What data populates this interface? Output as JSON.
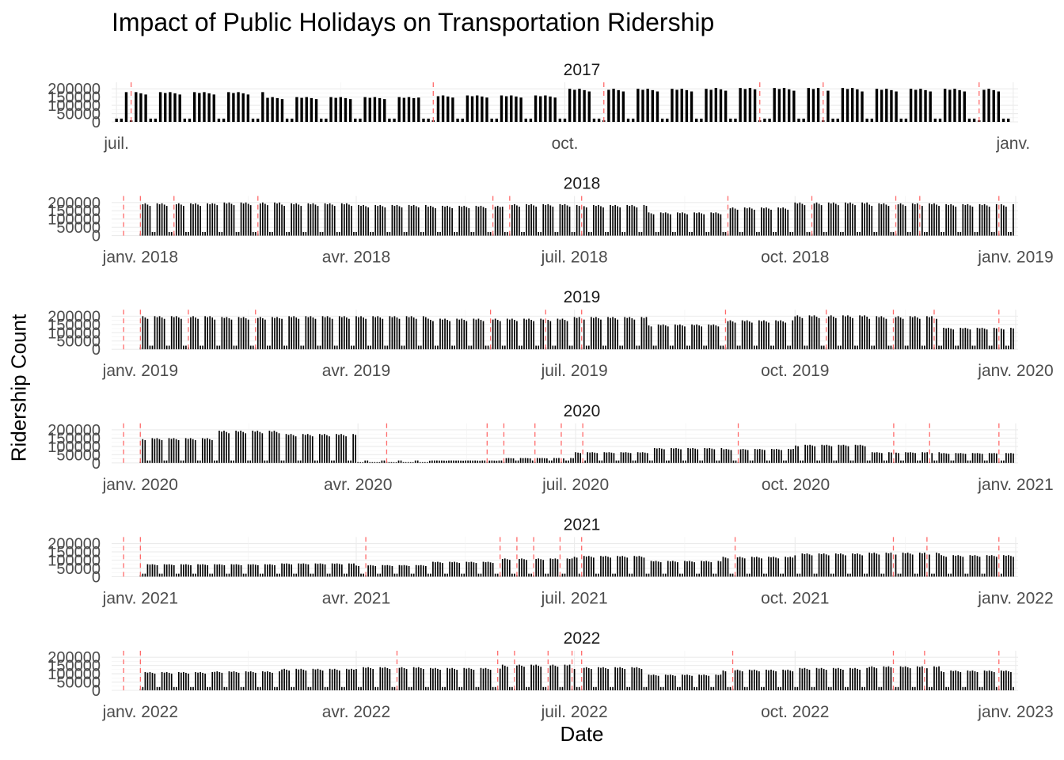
{
  "chart_data": {
    "type": "bar",
    "title": "Impact of Public Holidays on Transportation Ridership",
    "xlabel": "Date",
    "ylabel": "Ridership Count",
    "grid": true,
    "legend": "none",
    "bar_color": "#000000",
    "holiday_line_color": "#ff6b6b",
    "panels": [
      {
        "year": "2017",
        "xlim": [
          "2017-06-30",
          "2018-01-02"
        ],
        "ylim": [
          0,
          220000
        ],
        "y_ticks": [
          0,
          50000,
          100000,
          150000,
          200000
        ],
        "y_tick_labels": [
          "0",
          "50000",
          "100000",
          "150000",
          "200000"
        ],
        "x_ticks": [
          "2017-07-01",
          "2017-10-01",
          "2018-01-01"
        ],
        "x_tick_labels": [
          "juil.",
          "oct.",
          "janv."
        ],
        "holidays": [
          "2017-07-04",
          "2017-09-04",
          "2017-10-09",
          "2017-11-10",
          "2017-11-23",
          "2017-12-25"
        ],
        "daily_ridership": {
          "start": "2017-07-01",
          "end": "2017-12-31",
          "weekday_level_by_month": [
            {
              "month": "2017-07",
              "value": 180000
            },
            {
              "month": "2017-08",
              "value": 150000
            },
            {
              "month": "2017-09",
              "value": 160000
            },
            {
              "month": "2017-10",
              "value": 200000
            },
            {
              "month": "2017-11",
              "value": 205000
            },
            {
              "month": "2017-12",
              "value": 200000
            }
          ],
          "weekend_level": 20000,
          "holiday_level": 10000
        }
      },
      {
        "year": "2018",
        "xlim": [
          "2017-12-20",
          "2019-01-02"
        ],
        "ylim": [
          0,
          220000
        ],
        "y_ticks": [
          0,
          50000,
          100000,
          150000,
          200000
        ],
        "y_tick_labels": [
          "0",
          "50000",
          "100000",
          "150000",
          "200000"
        ],
        "x_ticks": [
          "2018-01-01",
          "2018-04-01",
          "2018-07-01",
          "2018-10-01",
          "2019-01-01"
        ],
        "x_tick_labels": [
          "janv. 2018",
          "avr. 2018",
          "juil. 2018",
          "oct. 2018",
          "janv. 2019"
        ],
        "holidays": [
          "2017-12-25",
          "2018-01-01",
          "2018-01-15",
          "2018-02-19",
          "2018-05-28",
          "2018-06-04",
          "2018-07-04",
          "2018-09-03",
          "2018-10-08",
          "2018-11-12",
          "2018-11-22",
          "2018-12-25"
        ],
        "daily_ridership": {
          "start": "2018-01-01",
          "end": "2018-12-31",
          "weekday_level_by_month": [
            {
              "month": "2018-01",
              "value": 195000
            },
            {
              "month": "2018-02",
              "value": 200000
            },
            {
              "month": "2018-03",
              "value": 195000
            },
            {
              "month": "2018-04",
              "value": 185000
            },
            {
              "month": "2018-05",
              "value": 180000
            },
            {
              "month": "2018-06",
              "value": 190000
            },
            {
              "month": "2018-07",
              "value": 185000
            },
            {
              "month": "2018-08",
              "value": 140000
            },
            {
              "month": "2018-09",
              "value": 170000
            },
            {
              "month": "2018-10",
              "value": 200000
            },
            {
              "month": "2018-11",
              "value": 195000
            },
            {
              "month": "2018-12",
              "value": 190000
            }
          ],
          "weekend_level": 22000,
          "holiday_level": 12000
        }
      },
      {
        "year": "2019",
        "xlim": [
          "2018-12-20",
          "2020-01-02"
        ],
        "ylim": [
          0,
          220000
        ],
        "y_ticks": [
          0,
          50000,
          100000,
          150000,
          200000
        ],
        "y_tick_labels": [
          "0",
          "50000",
          "100000",
          "150000",
          "200000"
        ],
        "x_ticks": [
          "2019-01-01",
          "2019-04-01",
          "2019-07-01",
          "2019-10-01",
          "2020-01-01"
        ],
        "x_tick_labels": [
          "janv. 2019",
          "avr. 2019",
          "juil. 2019",
          "oct. 2019",
          "janv. 2020"
        ],
        "holidays": [
          "2018-12-25",
          "2019-01-01",
          "2019-01-21",
          "2019-02-18",
          "2019-05-27",
          "2019-06-19",
          "2019-07-04",
          "2019-09-02",
          "2019-10-14",
          "2019-11-11",
          "2019-11-28",
          "2019-12-25"
        ],
        "daily_ridership": {
          "start": "2019-01-01",
          "end": "2019-12-31",
          "weekday_level_by_month": [
            {
              "month": "2019-01",
              "value": 200000
            },
            {
              "month": "2019-02",
              "value": 195000
            },
            {
              "month": "2019-03",
              "value": 200000
            },
            {
              "month": "2019-04",
              "value": 200000
            },
            {
              "month": "2019-05",
              "value": 185000
            },
            {
              "month": "2019-06",
              "value": 185000
            },
            {
              "month": "2019-07",
              "value": 195000
            },
            {
              "month": "2019-08",
              "value": 150000
            },
            {
              "month": "2019-09",
              "value": 175000
            },
            {
              "month": "2019-10",
              "value": 205000
            },
            {
              "month": "2019-11",
              "value": 200000
            },
            {
              "month": "2019-12",
              "value": 130000
            }
          ],
          "weekend_level": 22000,
          "holiday_level": 12000
        }
      },
      {
        "year": "2020",
        "xlim": [
          "2019-12-20",
          "2021-01-02"
        ],
        "ylim": [
          0,
          220000
        ],
        "y_ticks": [
          0,
          50000,
          100000,
          150000,
          200000
        ],
        "y_tick_labels": [
          "0",
          "50000",
          "100000",
          "150000",
          "200000"
        ],
        "x_ticks": [
          "2020-01-01",
          "2020-04-01",
          "2020-07-01",
          "2020-10-01",
          "2021-01-01"
        ],
        "x_tick_labels": [
          "janv. 2020",
          "avr. 2020",
          "juil. 2020",
          "oct. 2020",
          "janv. 2021"
        ],
        "holidays": [
          "2019-12-25",
          "2020-01-01",
          "2020-04-13",
          "2020-05-25",
          "2020-06-01",
          "2020-06-14",
          "2020-06-25",
          "2020-07-04",
          "2020-09-07",
          "2020-11-11",
          "2020-11-26",
          "2020-12-25"
        ],
        "daily_ridership": {
          "start": "2020-01-01",
          "end": "2020-12-31",
          "weekday_level_by_month": [
            {
              "month": "2020-01",
              "value": 150000
            },
            {
              "month": "2020-02",
              "value": 195000
            },
            {
              "month": "2020-03",
              "value": 175000
            },
            {
              "month": "2020-04",
              "value": 5000
            },
            {
              "month": "2020-05",
              "value": 15000
            },
            {
              "month": "2020-06",
              "value": 30000
            },
            {
              "month": "2020-07",
              "value": 65000
            },
            {
              "month": "2020-08",
              "value": 90000
            },
            {
              "month": "2020-09",
              "value": 85000
            },
            {
              "month": "2020-10",
              "value": 110000
            },
            {
              "month": "2020-11",
              "value": 65000
            },
            {
              "month": "2020-12",
              "value": 60000
            }
          ],
          "weekend_level": 15000,
          "holiday_level": 8000
        }
      },
      {
        "year": "2021",
        "xlim": [
          "2020-12-20",
          "2022-01-02"
        ],
        "ylim": [
          0,
          220000
        ],
        "y_ticks": [
          0,
          50000,
          100000,
          150000,
          200000
        ],
        "y_tick_labels": [
          "0",
          "50000",
          "100000",
          "150000",
          "200000"
        ],
        "x_ticks": [
          "2021-01-01",
          "2021-04-01",
          "2021-07-01",
          "2021-10-01",
          "2022-01-01"
        ],
        "x_tick_labels": [
          "janv. 2021",
          "avr. 2021",
          "juil. 2021",
          "oct. 2021",
          "janv. 2022"
        ],
        "holidays": [
          "2020-12-25",
          "2021-01-01",
          "2021-04-05",
          "2021-05-31",
          "2021-06-07",
          "2021-06-14",
          "2021-06-25",
          "2021-07-04",
          "2021-09-06",
          "2021-11-11",
          "2021-11-25",
          "2021-12-25"
        ],
        "daily_ridership": {
          "start": "2021-01-01",
          "end": "2021-12-31",
          "weekday_level_by_month": [
            {
              "month": "2021-01",
              "value": 75000
            },
            {
              "month": "2021-02",
              "value": 75000
            },
            {
              "month": "2021-03",
              "value": 80000
            },
            {
              "month": "2021-04",
              "value": 70000
            },
            {
              "month": "2021-05",
              "value": 90000
            },
            {
              "month": "2021-06",
              "value": 110000
            },
            {
              "month": "2021-07",
              "value": 125000
            },
            {
              "month": "2021-08",
              "value": 95000
            },
            {
              "month": "2021-09",
              "value": 120000
            },
            {
              "month": "2021-10",
              "value": 140000
            },
            {
              "month": "2021-11",
              "value": 145000
            },
            {
              "month": "2021-12",
              "value": 130000
            }
          ],
          "weekend_level": 18000,
          "holiday_level": 10000
        }
      },
      {
        "year": "2022",
        "xlim": [
          "2021-12-20",
          "2023-01-02"
        ],
        "ylim": [
          0,
          220000
        ],
        "y_ticks": [
          0,
          50000,
          100000,
          150000,
          200000
        ],
        "y_tick_labels": [
          "0",
          "50000",
          "100000",
          "150000",
          "200000"
        ],
        "x_ticks": [
          "2022-01-01",
          "2022-04-01",
          "2022-07-01",
          "2022-10-01",
          "2023-01-01"
        ],
        "x_tick_labels": [
          "janv. 2022",
          "avr. 2022",
          "juil. 2022",
          "oct. 2022",
          "janv. 2023"
        ],
        "holidays": [
          "2021-12-25",
          "2022-01-01",
          "2022-04-18",
          "2022-05-30",
          "2022-06-06",
          "2022-06-20",
          "2022-06-30",
          "2022-07-04",
          "2022-09-05",
          "2022-11-11",
          "2022-11-24",
          "2022-12-25"
        ],
        "daily_ridership": {
          "start": "2022-01-01",
          "end": "2022-12-31",
          "weekday_level_by_month": [
            {
              "month": "2022-01",
              "value": 110000
            },
            {
              "month": "2022-02",
              "value": 115000
            },
            {
              "month": "2022-03",
              "value": 130000
            },
            {
              "month": "2022-04",
              "value": 140000
            },
            {
              "month": "2022-05",
              "value": 135000
            },
            {
              "month": "2022-06",
              "value": 155000
            },
            {
              "month": "2022-07",
              "value": 140000
            },
            {
              "month": "2022-08",
              "value": 95000
            },
            {
              "month": "2022-09",
              "value": 125000
            },
            {
              "month": "2022-10",
              "value": 135000
            },
            {
              "month": "2022-11",
              "value": 145000
            },
            {
              "month": "2022-12",
              "value": 120000
            }
          ],
          "weekend_level": 20000,
          "holiday_level": 10000
        }
      }
    ]
  }
}
